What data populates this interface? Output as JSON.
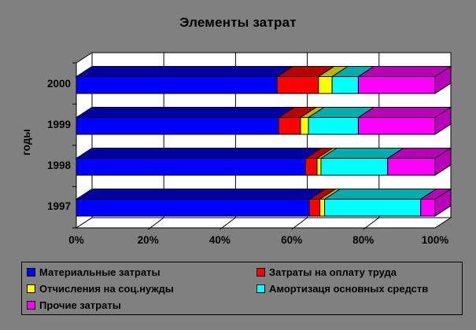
{
  "title": "Элементы затрат",
  "colors": {
    "background": "#808080",
    "wall_fill": "#FFFFFF",
    "outline": "#000000",
    "series_front": [
      "#0000FF",
      "#FF0000",
      "#FFFF00",
      "#00FFFF",
      "#FF00FF"
    ],
    "series_dark": [
      "#0000A4",
      "#B80000",
      "#B8B800",
      "#00ACAC",
      "#B800B8"
    ]
  },
  "chart_data": {
    "type": "bar",
    "orientation": "horizontal",
    "stacked": true,
    "percent_stacked": true,
    "style": "3d",
    "title": "Элементы затрат",
    "xlabel": "",
    "ylabel": "годы",
    "categories": [
      "2000",
      "1999",
      "1998",
      "1997"
    ],
    "series": [
      {
        "name": "Материальные затраты",
        "color": "#0000FF",
        "values": [
          56.0,
          56.4,
          63.9,
          65.0
        ]
      },
      {
        "name": "Затраты на оплату труда",
        "color": "#FF0000",
        "values": [
          11.5,
          6.1,
          3.2,
          2.9
        ]
      },
      {
        "name": "Отчисления на соц.нужды",
        "color": "#FFFF00",
        "values": [
          3.8,
          2.2,
          1.1,
          1.3
        ]
      },
      {
        "name": "Амортизаця основных средств",
        "color": "#00FFFF",
        "values": [
          7.3,
          13.9,
          18.6,
          26.8
        ]
      },
      {
        "name": "Прочие затраты",
        "color": "#FF00FF",
        "values": [
          21.4,
          21.4,
          13.2,
          4.0
        ]
      }
    ],
    "x_ticks": [
      "0%",
      "20%",
      "40%",
      "60%",
      "80%",
      "100%"
    ],
    "x_tick_values": [
      0,
      20,
      40,
      60,
      80,
      100
    ],
    "xlim": [
      0,
      100
    ],
    "grid": true,
    "legend_position": "bottom"
  },
  "legend": {
    "items": [
      {
        "label": "Материальные затраты",
        "color": "#0000FF"
      },
      {
        "label": "Затраты на оплату труда",
        "color": "#FF0000"
      },
      {
        "label": "Отчисления на соц.нужды",
        "color": "#FFFF00"
      },
      {
        "label": "Амортизаця основных средств",
        "color": "#00FFFF"
      },
      {
        "label": "Прочие затраты",
        "color": "#FF00FF"
      }
    ]
  }
}
